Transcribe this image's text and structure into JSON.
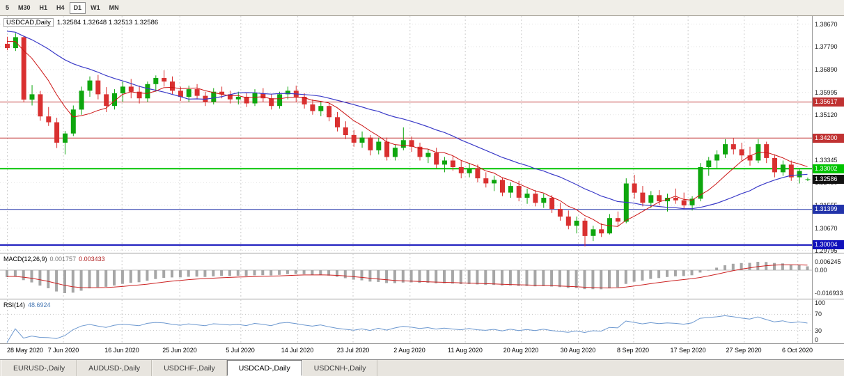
{
  "toolbar": {
    "timeframes": [
      "5",
      "M30",
      "H1",
      "H4",
      "D1",
      "W1",
      "MN"
    ],
    "active": "D1"
  },
  "header": {
    "title": "USDCAD,Daily",
    "ohlc": "1.32584 1.32648 1.32513 1.32586"
  },
  "chart_data": {
    "type": "candlestick",
    "symbol": "USDCAD",
    "timeframe": "Daily",
    "axis_prices": [
      {
        "text": "1.38670",
        "price": 1.3867
      },
      {
        "text": "1.37790",
        "price": 1.3779
      },
      {
        "text": "1.36890",
        "price": 1.3689
      },
      {
        "text": "1.35995",
        "price": 1.35995
      },
      {
        "text": "1.35120",
        "price": 1.3512
      },
      {
        "text": "1.33345",
        "price": 1.33345
      },
      {
        "text": "1.32450",
        "price": 1.3245
      },
      {
        "text": "1.31555",
        "price": 1.31555
      },
      {
        "text": "1.30670",
        "price": 1.3067
      },
      {
        "text": "1.29795",
        "price": 1.29795
      }
    ],
    "levels": [
      {
        "text": "1.35617",
        "price": 1.35617,
        "color": "#c03232",
        "thick": 1
      },
      {
        "text": "1.34200",
        "price": 1.342,
        "color": "#c03232",
        "thick": 1
      },
      {
        "text": "1.33002",
        "price": 1.33002,
        "color": "#00c400",
        "thick": 2
      },
      {
        "text": "1.31399",
        "price": 1.31399,
        "color": "#2233aa",
        "thick": 1
      },
      {
        "text": "1.30004",
        "price": 1.30004,
        "color": "#1111bb",
        "thick": 2
      }
    ],
    "current_price": {
      "text": "1.32586",
      "price": 1.32586,
      "color": "#111111"
    },
    "price_range": {
      "top": 1.388,
      "bottom": 1.297
    },
    "candles": [
      [
        1.379,
        1.3818,
        1.3765,
        1.3773
      ],
      [
        1.3773,
        1.3832,
        1.3762,
        1.3816
      ],
      [
        1.3816,
        1.3822,
        1.356,
        1.3571
      ],
      [
        1.3571,
        1.3628,
        1.3548,
        1.3592
      ],
      [
        1.3592,
        1.3605,
        1.3488,
        1.3505
      ],
      [
        1.3505,
        1.3542,
        1.3468,
        1.3482
      ],
      [
        1.3482,
        1.35,
        1.3381,
        1.3402
      ],
      [
        1.3402,
        1.3448,
        1.3356,
        1.3438
      ],
      [
        1.3438,
        1.3548,
        1.3428,
        1.3532
      ],
      [
        1.3532,
        1.3622,
        1.3512,
        1.3606
      ],
      [
        1.3606,
        1.3662,
        1.3582,
        1.3646
      ],
      [
        1.3646,
        1.3668,
        1.3572,
        1.3592
      ],
      [
        1.3592,
        1.362,
        1.3522,
        1.3546
      ],
      [
        1.3546,
        1.3612,
        1.3532,
        1.3596
      ],
      [
        1.3596,
        1.3642,
        1.3562,
        1.3622
      ],
      [
        1.3622,
        1.3652,
        1.3576,
        1.3602
      ],
      [
        1.3602,
        1.3626,
        1.3556,
        1.3576
      ],
      [
        1.3576,
        1.3642,
        1.3562,
        1.3632
      ],
      [
        1.3632,
        1.3666,
        1.3602,
        1.3656
      ],
      [
        1.3656,
        1.3686,
        1.3622,
        1.3642
      ],
      [
        1.3642,
        1.3662,
        1.3592,
        1.3606
      ],
      [
        1.3606,
        1.3622,
        1.3566,
        1.3582
      ],
      [
        1.3582,
        1.3626,
        1.3562,
        1.3612
      ],
      [
        1.3612,
        1.3632,
        1.3572,
        1.3586
      ],
      [
        1.3586,
        1.3602,
        1.3546,
        1.3562
      ],
      [
        1.3562,
        1.3616,
        1.3552,
        1.3602
      ],
      [
        1.3602,
        1.3622,
        1.3576,
        1.3592
      ],
      [
        1.3592,
        1.3606,
        1.3556,
        1.3572
      ],
      [
        1.3572,
        1.3602,
        1.3552,
        1.3582
      ],
      [
        1.3582,
        1.3596,
        1.3542,
        1.3556
      ],
      [
        1.3556,
        1.3612,
        1.3546,
        1.3596
      ],
      [
        1.3596,
        1.3616,
        1.3562,
        1.3576
      ],
      [
        1.3576,
        1.3592,
        1.3532,
        1.3546
      ],
      [
        1.3546,
        1.3602,
        1.3536,
        1.3592
      ],
      [
        1.3592,
        1.3622,
        1.3572,
        1.3606
      ],
      [
        1.3606,
        1.3626,
        1.3562,
        1.3582
      ],
      [
        1.3582,
        1.3596,
        1.3536,
        1.3552
      ],
      [
        1.3552,
        1.3572,
        1.3512,
        1.3526
      ],
      [
        1.3526,
        1.3562,
        1.3506,
        1.3546
      ],
      [
        1.3546,
        1.3556,
        1.3486,
        1.3502
      ],
      [
        1.3502,
        1.3522,
        1.3446,
        1.3462
      ],
      [
        1.3462,
        1.3486,
        1.3416,
        1.3432
      ],
      [
        1.3432,
        1.3452,
        1.3386,
        1.3402
      ],
      [
        1.3402,
        1.3446,
        1.3382,
        1.3422
      ],
      [
        1.3422,
        1.3432,
        1.3352,
        1.3372
      ],
      [
        1.3372,
        1.3422,
        1.3356,
        1.3406
      ],
      [
        1.3406,
        1.3422,
        1.3332,
        1.3346
      ],
      [
        1.3346,
        1.3396,
        1.3332,
        1.3382
      ],
      [
        1.3382,
        1.3462,
        1.3372,
        1.3412
      ],
      [
        1.3412,
        1.3426,
        1.3366,
        1.3386
      ],
      [
        1.3386,
        1.3402,
        1.3332,
        1.3346
      ],
      [
        1.3346,
        1.3376,
        1.3322,
        1.3362
      ],
      [
        1.3362,
        1.3382,
        1.3302,
        1.3316
      ],
      [
        1.3316,
        1.3346,
        1.3286,
        1.3332
      ],
      [
        1.3332,
        1.3352,
        1.3292,
        1.3306
      ],
      [
        1.3306,
        1.3332,
        1.3262,
        1.3282
      ],
      [
        1.3282,
        1.3322,
        1.3266,
        1.3302
      ],
      [
        1.3302,
        1.3316,
        1.3246,
        1.3262
      ],
      [
        1.3262,
        1.3286,
        1.3226,
        1.3242
      ],
      [
        1.3242,
        1.3272,
        1.3212,
        1.3256
      ],
      [
        1.3256,
        1.3266,
        1.3192,
        1.3206
      ],
      [
        1.3206,
        1.3246,
        1.3186,
        1.3232
      ],
      [
        1.3232,
        1.3252,
        1.3172,
        1.3186
      ],
      [
        1.3186,
        1.3222,
        1.3162,
        1.3202
      ],
      [
        1.3202,
        1.3216,
        1.3152,
        1.3166
      ],
      [
        1.3166,
        1.3202,
        1.3146,
        1.3186
      ],
      [
        1.3186,
        1.3196,
        1.3126,
        1.3142
      ],
      [
        1.3142,
        1.3166,
        1.3096,
        1.3112
      ],
      [
        1.3112,
        1.3136,
        1.3062,
        1.3076
      ],
      [
        1.3076,
        1.3112,
        1.3046,
        1.3096
      ],
      [
        1.3096,
        1.3106,
        1.2995,
        1.3036
      ],
      [
        1.3036,
        1.3076,
        1.3016,
        1.3062
      ],
      [
        1.3062,
        1.3086,
        1.3032,
        1.3046
      ],
      [
        1.3046,
        1.3122,
        1.3042,
        1.3106
      ],
      [
        1.3106,
        1.3132,
        1.3072,
        1.3092
      ],
      [
        1.3092,
        1.3262,
        1.3086,
        1.3242
      ],
      [
        1.3242,
        1.3276,
        1.3182,
        1.3206
      ],
      [
        1.3206,
        1.3232,
        1.3152,
        1.3166
      ],
      [
        1.3166,
        1.3212,
        1.3146,
        1.3196
      ],
      [
        1.3196,
        1.3216,
        1.3156,
        1.3172
      ],
      [
        1.3172,
        1.3202,
        1.3132,
        1.3186
      ],
      [
        1.3186,
        1.3222,
        1.3162,
        1.3176
      ],
      [
        1.3176,
        1.3206,
        1.3142,
        1.3156
      ],
      [
        1.3156,
        1.3192,
        1.3136,
        1.3182
      ],
      [
        1.3182,
        1.3322,
        1.3172,
        1.3306
      ],
      [
        1.3306,
        1.3346,
        1.3272,
        1.3332
      ],
      [
        1.3332,
        1.3372,
        1.3302,
        1.3356
      ],
      [
        1.3356,
        1.3416,
        1.3342,
        1.3396
      ],
      [
        1.3396,
        1.3421,
        1.3356,
        1.3376
      ],
      [
        1.3376,
        1.3402,
        1.3332,
        1.3352
      ],
      [
        1.3352,
        1.3386,
        1.3312,
        1.3332
      ],
      [
        1.3332,
        1.3416,
        1.3322,
        1.3396
      ],
      [
        1.3396,
        1.3406,
        1.3322,
        1.3342
      ],
      [
        1.3342,
        1.3356,
        1.3266,
        1.3286
      ],
      [
        1.3286,
        1.3332,
        1.3272,
        1.3316
      ],
      [
        1.3316,
        1.3332,
        1.3252,
        1.3266
      ],
      [
        1.3266,
        1.3302,
        1.3242,
        1.3291
      ],
      [
        1.32584,
        1.32648,
        1.32513,
        1.32586
      ]
    ],
    "date_ticks": [
      {
        "label": "28 May 2020",
        "i": 0
      },
      {
        "label": "7 Jun 2020",
        "i": 6.8
      },
      {
        "label": "16 Jun 2020",
        "i": 13.9
      },
      {
        "label": "25 Jun 2020",
        "i": 20.9
      },
      {
        "label": "5 Jul 2020",
        "i": 28.3
      },
      {
        "label": "14 Jul 2020",
        "i": 35.2
      },
      {
        "label": "23 Jul 2020",
        "i": 41.9
      },
      {
        "label": "2 Aug 2020",
        "i": 48.8
      },
      {
        "label": "11 Aug 2020",
        "i": 55.5
      },
      {
        "label": "20 Aug 2020",
        "i": 62.3
      },
      {
        "label": "30 Aug 2020",
        "i": 69.2
      },
      {
        "label": "8 Sep 2020",
        "i": 75.9
      },
      {
        "label": "17 Sep 2020",
        "i": 82.5
      },
      {
        "label": "27 Sep 2020",
        "i": 89.3
      },
      {
        "label": "6 Oct 2020",
        "i": 95.8
      }
    ]
  },
  "macd": {
    "label": "MACD(12,26,9)",
    "value_hist": "0.001757",
    "value_signal": "0.003433",
    "axis_top": "0.006245",
    "axis_zero": "0.00",
    "axis_bottom": "-0.016933"
  },
  "rsi": {
    "label": "RSI(14)",
    "value": "48.6924",
    "axis": [
      {
        "text": "100",
        "v": 100
      },
      {
        "text": "70",
        "v": 70
      },
      {
        "text": "30",
        "v": 30
      },
      {
        "text": "0",
        "v": 0
      }
    ],
    "levels": [
      70,
      30
    ]
  },
  "tabs": {
    "items": [
      "EURUSD-,Daily",
      "AUDUSD-,Daily",
      "USDCHF-,Daily",
      "USDCAD-,Daily",
      "USDCNH-,Daily"
    ],
    "active": "USDCAD-,Daily"
  },
  "colors": {
    "bull": "#0ea60e",
    "bear": "#d93030",
    "ma_fast": "#cc1414",
    "ma_slow": "#3a3ac8",
    "macd_hist": "#a6a6a6",
    "macd_signal": "#cc2222",
    "rsi_line": "#6b97cf",
    "grid": "#cdcdcd"
  }
}
